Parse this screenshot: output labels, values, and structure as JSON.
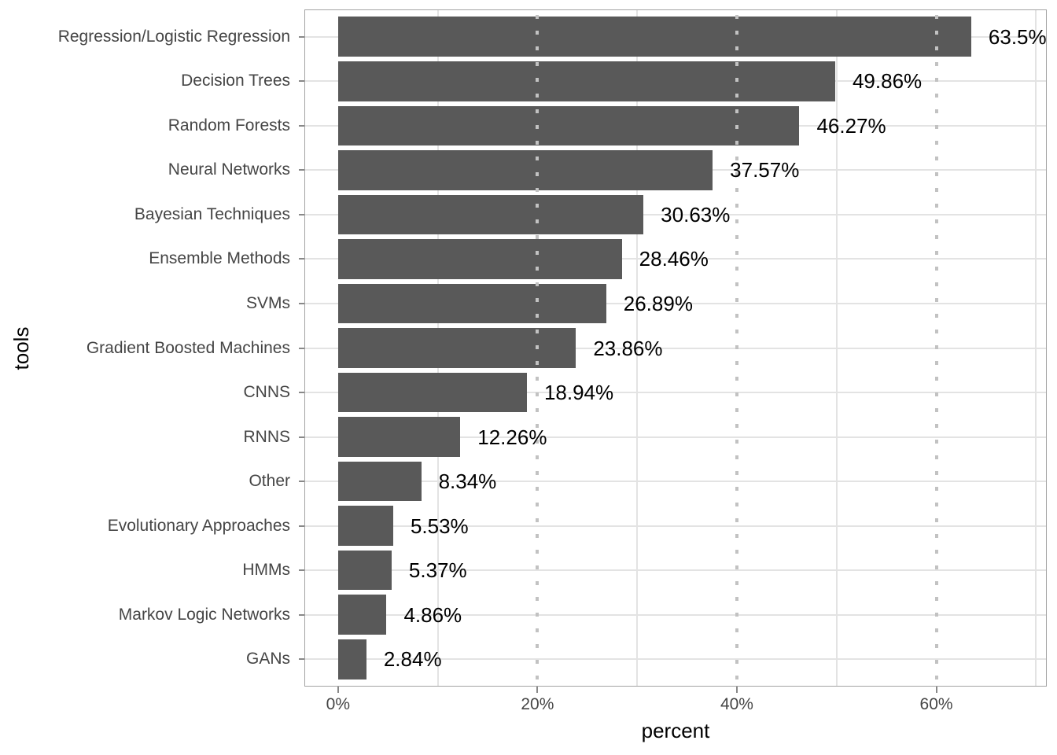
{
  "chart_data": {
    "type": "bar",
    "orientation": "horizontal",
    "title": "",
    "xlabel": "percent",
    "ylabel": "tools",
    "categories": [
      "Regression/Logistic Regression",
      "Decision Trees",
      "Random Forests",
      "Neural Networks",
      "Bayesian Techniques",
      "Ensemble Methods",
      "SVMs",
      "Gradient Boosted Machines",
      "CNNS",
      "RNNS",
      "Other",
      "Evolutionary Approaches",
      "HMMs",
      "Markov Logic Networks",
      "GANs"
    ],
    "values": [
      63.5,
      49.86,
      46.27,
      37.57,
      30.63,
      28.46,
      26.89,
      23.86,
      18.94,
      12.26,
      8.34,
      5.53,
      5.37,
      4.86,
      2.84
    ],
    "value_labels": [
      "63.5%",
      "49.86%",
      "46.27%",
      "37.57%",
      "30.63%",
      "28.46%",
      "26.89%",
      "23.86%",
      "18.94%",
      "12.26%",
      "8.34%",
      "5.53%",
      "5.37%",
      "4.86%",
      "2.84%"
    ],
    "x_ticks": [
      {
        "value": 0,
        "label": "0%"
      },
      {
        "value": 20,
        "label": "20%"
      },
      {
        "value": 40,
        "label": "40%"
      },
      {
        "value": 60,
        "label": "60%"
      }
    ],
    "xlim": [
      -3.3,
      71.0
    ],
    "grid": {
      "minor_x_solid": [
        10,
        30,
        50,
        70
      ],
      "major_x_dotted": [
        20,
        40,
        60
      ],
      "horizontal_at_category_centers": true
    },
    "legend": "none",
    "colors": {
      "bar_fill": "#595959",
      "minor_grid": "#e3e3e3",
      "horizontal_grid": "#e3e3e3",
      "dotted_grid": "#c2c2c2",
      "panel_border": "#a3a3a3",
      "tick_mark": "#888888",
      "axis_text": "#454545",
      "value_text": "#000000",
      "background": "#ffffff"
    }
  }
}
